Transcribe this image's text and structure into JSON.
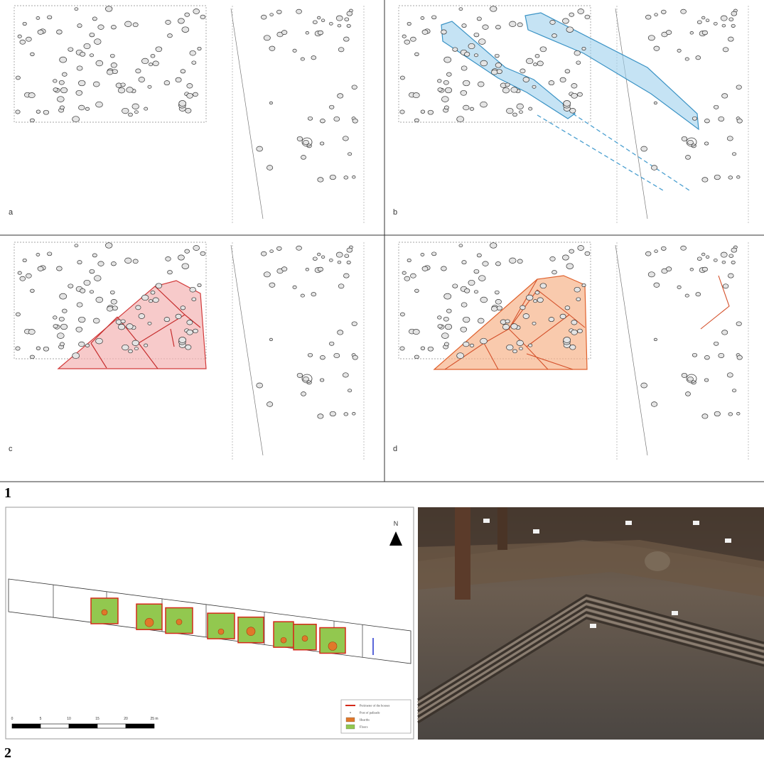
{
  "figure": {
    "part1": {
      "label": "1",
      "panels": [
        {
          "label": "a"
        },
        {
          "label": "b"
        },
        {
          "label": "c"
        },
        {
          "label": "d"
        }
      ]
    },
    "part2": {
      "label": "2",
      "map": {
        "north": "N",
        "scale": [
          "0",
          "5",
          "10",
          "15",
          "20",
          "25 m"
        ],
        "legend": [
          "Perimeter of the houses",
          "Post of palisade",
          "Hearths",
          "Floors"
        ]
      }
    }
  }
}
